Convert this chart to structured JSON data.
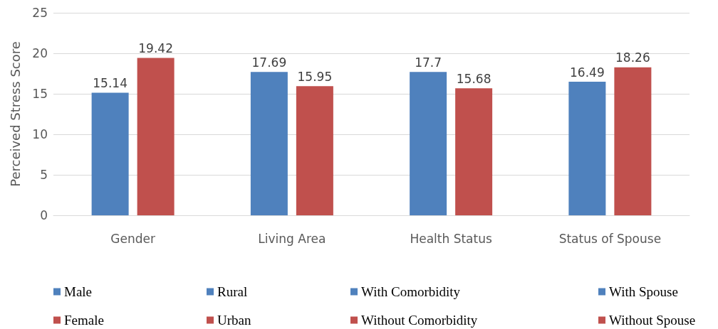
{
  "chart_data": {
    "type": "bar",
    "ylabel": "Perceived Stress Score",
    "categories": [
      "Gender",
      "Living Area",
      "Health Status",
      "Status of Spouse"
    ],
    "data_labels": true,
    "grid": "y",
    "legend": "bottom",
    "ylim": [
      0,
      25
    ],
    "yticks": [
      0,
      5,
      10,
      15,
      20,
      25
    ],
    "series": [
      {
        "name": "Male",
        "color": "#4f81bd",
        "values": [
          15.14,
          null,
          null,
          null
        ]
      },
      {
        "name": "Female",
        "color": "#c0504d",
        "values": [
          19.42,
          null,
          null,
          null
        ]
      },
      {
        "name": "Rural",
        "color": "#4f81bd",
        "values": [
          null,
          17.69,
          null,
          null
        ]
      },
      {
        "name": "Urban",
        "color": "#c0504d",
        "values": [
          null,
          15.95,
          null,
          null
        ]
      },
      {
        "name": "With Comorbidity",
        "color": "#4f81bd",
        "values": [
          null,
          null,
          17.7,
          null
        ]
      },
      {
        "name": "Without Comorbidity",
        "color": "#c0504d",
        "values": [
          null,
          null,
          15.68,
          null
        ]
      },
      {
        "name": "With Spouse",
        "color": "#4f81bd",
        "values": [
          null,
          null,
          null,
          16.49
        ]
      },
      {
        "name": "Without Spouse",
        "color": "#c0504d",
        "values": [
          null,
          null,
          null,
          18.26
        ]
      }
    ]
  }
}
